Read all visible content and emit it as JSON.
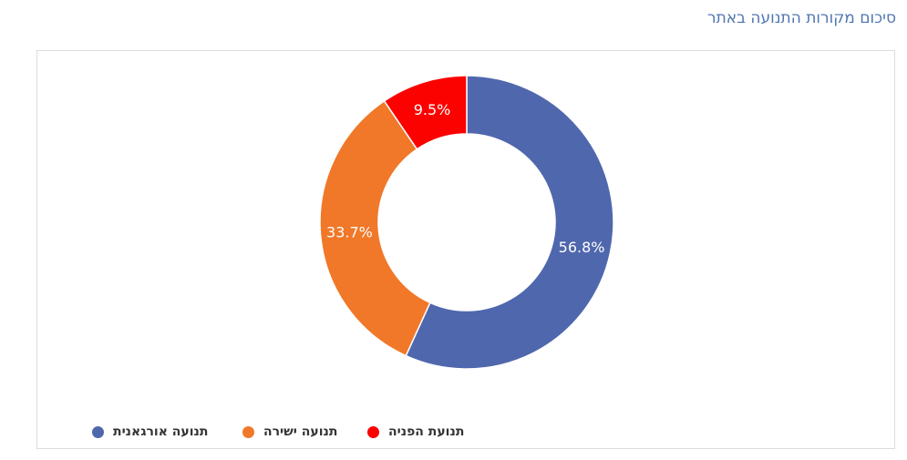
{
  "header": {
    "title": "סיכום מקורות התנועה באתר"
  },
  "chart_data": {
    "type": "pie",
    "donut": true,
    "slices": [
      {
        "name": "תנועה אורגאנית",
        "value": 56.8,
        "label": "56.8%",
        "color": "#4f67ad"
      },
      {
        "name": "תנועה ישירה",
        "value": 33.7,
        "label": "33.7%",
        "color": "#f07828"
      },
      {
        "name": "תנועת הפניה",
        "value": 9.5,
        "label": "9.5%",
        "color": "#fb0200"
      }
    ],
    "legend_position": "bottom-left"
  }
}
